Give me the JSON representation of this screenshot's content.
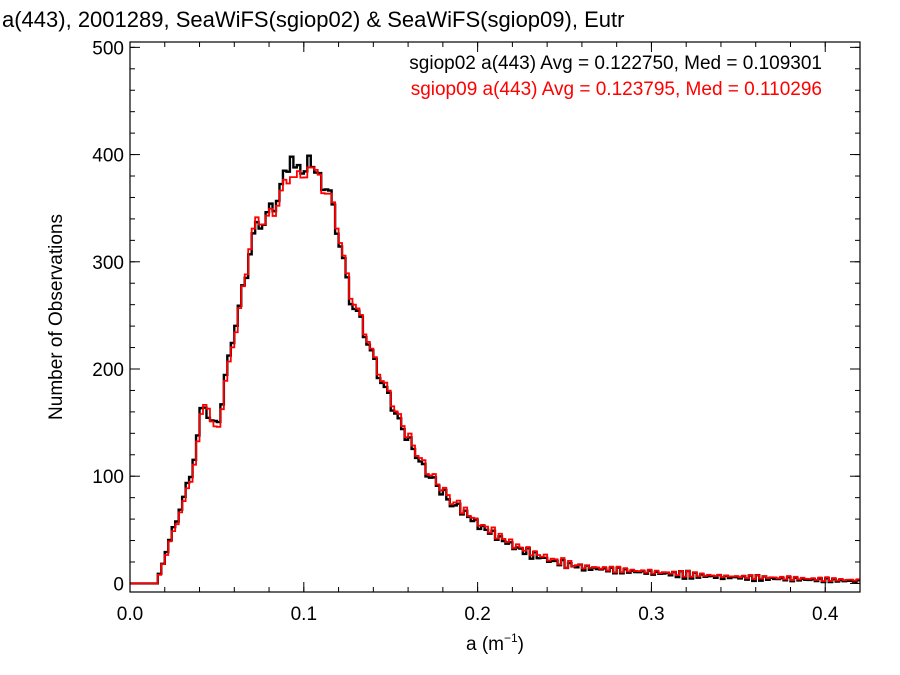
{
  "chart_data": {
    "type": "line",
    "step": true,
    "title": "a(443), 2001289, SeaWiFS(sgiop02) & SeaWiFS(sgiop09), Eutr",
    "xlabel_base": "a (m",
    "xlabel_sup": "−1",
    "xlabel_close": ")",
    "ylabel": "Number of Observations",
    "xlim": [
      0.0,
      0.42
    ],
    "ylim": [
      -8,
      505
    ],
    "x_ticks": [
      0.0,
      0.1,
      0.2,
      0.3,
      0.4
    ],
    "x_tick_labels": [
      "0.0",
      "0.1",
      "0.2",
      "0.3",
      "0.4"
    ],
    "y_ticks": [
      0,
      100,
      200,
      300,
      400,
      500
    ],
    "y_tick_labels": [
      "0",
      "100",
      "200",
      "300",
      "400",
      "500"
    ],
    "x_minor_step": 0.02,
    "y_minor_step": 20,
    "bin_width": 0.002,
    "x_anchor": [
      0.0,
      0.016,
      0.018,
      0.022,
      0.026,
      0.03,
      0.034,
      0.038,
      0.042,
      0.044,
      0.046,
      0.048,
      0.05,
      0.054,
      0.058,
      0.062,
      0.066,
      0.07,
      0.074,
      0.078,
      0.082,
      0.086,
      0.09,
      0.093,
      0.096,
      0.1,
      0.103,
      0.106,
      0.11,
      0.114,
      0.118,
      0.122,
      0.126,
      0.13,
      0.134,
      0.138,
      0.142,
      0.146,
      0.15,
      0.155,
      0.16,
      0.165,
      0.17,
      0.175,
      0.18,
      0.185,
      0.19,
      0.2,
      0.21,
      0.22,
      0.23,
      0.24,
      0.25,
      0.26,
      0.28,
      0.3,
      0.32,
      0.34,
      0.36,
      0.38,
      0.4,
      0.42
    ],
    "series": [
      {
        "name": "sgiop02",
        "color": "#000000",
        "values": [
          0,
          0,
          15,
          35,
          55,
          75,
          95,
          125,
          170,
          160,
          150,
          155,
          145,
          180,
          220,
          250,
          280,
          320,
          335,
          340,
          350,
          365,
          380,
          410,
          385,
          375,
          412,
          380,
          375,
          370,
          340,
          310,
          270,
          255,
          240,
          220,
          200,
          185,
          170,
          150,
          135,
          120,
          105,
          95,
          85,
          75,
          70,
          55,
          45,
          35,
          28,
          22,
          18,
          15,
          12,
          10,
          8,
          6,
          5,
          4,
          3,
          2
        ],
        "offsets": [
          0,
          0,
          3,
          -2,
          4,
          -3,
          6,
          -5,
          8,
          -6,
          5,
          -4,
          7,
          -8,
          6,
          -5,
          9,
          -7,
          10,
          -9,
          12,
          -10,
          15,
          -12,
          14,
          -11,
          13,
          -10,
          12,
          -9,
          11,
          -8,
          10,
          -7,
          9,
          -6,
          8,
          -5,
          7,
          -4,
          6,
          -3,
          5,
          -4,
          6,
          -3,
          5,
          -4,
          4,
          -3,
          5,
          -2,
          4,
          -3,
          3,
          -2,
          4,
          -2,
          3,
          -2,
          2,
          -1
        ]
      },
      {
        "name": "sgiop09",
        "color": "#ff0000",
        "values": [
          0,
          0,
          14,
          33,
          52,
          72,
          90,
          120,
          165,
          170,
          155,
          150,
          140,
          175,
          215,
          245,
          282,
          325,
          340,
          338,
          345,
          360,
          372,
          390,
          380,
          372,
          400,
          385,
          372,
          365,
          345,
          312,
          275,
          258,
          242,
          222,
          202,
          188,
          173,
          153,
          138,
          123,
          108,
          97,
          88,
          78,
          72,
          57,
          47,
          37,
          30,
          24,
          19,
          16,
          13,
          11,
          9,
          7,
          6,
          5,
          4,
          3
        ],
        "offsets": [
          0,
          0,
          2,
          -3,
          3,
          -2,
          5,
          -4,
          7,
          -5,
          6,
          -3,
          6,
          -7,
          5,
          -6,
          8,
          -6,
          9,
          -8,
          11,
          -9,
          13,
          -11,
          12,
          -10,
          12,
          -9,
          11,
          -8,
          10,
          -7,
          9,
          -6,
          8,
          -5,
          7,
          -6,
          6,
          -5,
          7,
          -4,
          6,
          -5,
          5,
          -4,
          6,
          -3,
          5,
          -4,
          4,
          -3,
          5,
          -2,
          3,
          -2,
          3,
          -1,
          2,
          -2,
          2,
          -1
        ]
      }
    ],
    "legend": [
      {
        "text": "sgiop02 a(443) Avg = 0.122750, Med = 0.109301",
        "color": "#000000"
      },
      {
        "text": "sgiop09 a(443) Avg = 0.123795, Med = 0.110296",
        "color": "#ff0000"
      }
    ],
    "legend_position": "top-right",
    "grid": false
  }
}
